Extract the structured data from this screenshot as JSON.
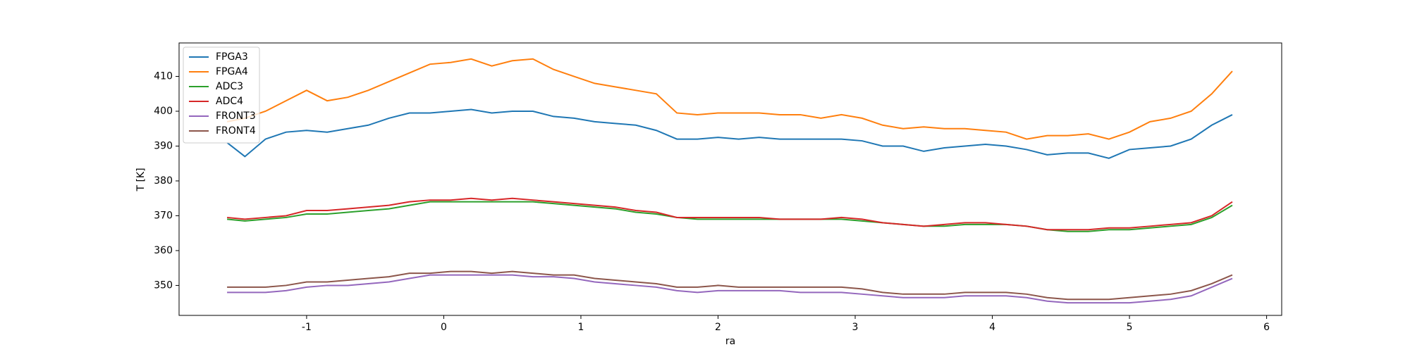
{
  "chart_data": {
    "type": "line",
    "x_label": "ra",
    "y_label": "T [K]",
    "xlim": [
      -1.93,
      6.11
    ],
    "ylim": [
      341.4,
      419.6
    ],
    "xticks": [
      -1,
      0,
      1,
      2,
      3,
      4,
      5,
      6
    ],
    "yticks": [
      350,
      360,
      370,
      380,
      390,
      400,
      410
    ],
    "grid": false,
    "legend": "upper left",
    "x": [
      -1.58,
      -1.45,
      -1.3,
      -1.15,
      -1.0,
      -0.85,
      -0.7,
      -0.55,
      -0.4,
      -0.25,
      -0.1,
      0.05,
      0.2,
      0.35,
      0.5,
      0.65,
      0.8,
      0.95,
      1.1,
      1.25,
      1.4,
      1.55,
      1.7,
      1.85,
      2.0,
      2.15,
      2.3,
      2.45,
      2.6,
      2.75,
      2.9,
      3.05,
      3.2,
      3.35,
      3.5,
      3.65,
      3.8,
      3.95,
      4.1,
      4.25,
      4.4,
      4.55,
      4.7,
      4.85,
      5.0,
      5.15,
      5.3,
      5.45,
      5.6,
      5.75
    ],
    "series": [
      {
        "name": "FPGA3",
        "color": "#1f77b4",
        "values": [
          391,
          387,
          392,
          394,
          394.5,
          394,
          395,
          396,
          398,
          399.5,
          399.5,
          400,
          400.5,
          399.5,
          400,
          400,
          398.5,
          398,
          397,
          396.5,
          396,
          394.5,
          392,
          392,
          392.5,
          392,
          392.5,
          392,
          392,
          392,
          392,
          391.5,
          390,
          390,
          388.5,
          389.5,
          390,
          390.5,
          390,
          389,
          387.5,
          388,
          388,
          386.5,
          389,
          389.5,
          390,
          392,
          396,
          399
        ]
      },
      {
        "name": "FPGA4",
        "color": "#ff7f0e",
        "values": [
          397,
          398,
          400,
          403,
          406,
          403,
          404,
          406,
          408.5,
          411,
          413.5,
          414,
          415,
          413,
          414.5,
          415,
          412,
          410,
          408,
          407,
          406,
          405,
          399.5,
          399,
          399.5,
          399.5,
          399.5,
          399,
          399,
          398,
          399,
          398,
          396,
          395,
          395.5,
          395,
          395,
          394.5,
          394,
          392,
          393,
          393,
          393.5,
          392,
          394,
          397,
          398,
          400,
          405,
          411.5
        ]
      },
      {
        "name": "ADC3",
        "color": "#2ca02c",
        "values": [
          369,
          368.5,
          369,
          369.5,
          370.5,
          370.5,
          371,
          371.5,
          372,
          373,
          374,
          374,
          374,
          374,
          374,
          374,
          373.5,
          373,
          372.5,
          372,
          371,
          370.5,
          369.5,
          369,
          369,
          369,
          369,
          369,
          369,
          369,
          369,
          368.5,
          368,
          367.5,
          367,
          367,
          367.5,
          367.5,
          367.5,
          367,
          366,
          365.5,
          365.5,
          366,
          366,
          366.5,
          367,
          367.5,
          369.5,
          373
        ]
      },
      {
        "name": "ADC4",
        "color": "#d62728",
        "values": [
          369.5,
          369,
          369.5,
          370,
          371.5,
          371.5,
          372,
          372.5,
          373,
          374,
          374.5,
          374.5,
          375,
          374.5,
          375,
          374.5,
          374,
          373.5,
          373,
          372.5,
          371.5,
          371,
          369.5,
          369.5,
          369.5,
          369.5,
          369.5,
          369,
          369,
          369,
          369.5,
          369,
          368,
          367.5,
          367,
          367.5,
          368,
          368,
          367.5,
          367,
          366,
          366,
          366,
          366.5,
          366.5,
          367,
          367.5,
          368,
          370,
          374
        ]
      },
      {
        "name": "FRONT3",
        "color": "#9467bd",
        "values": [
          348,
          348,
          348,
          348.5,
          349.5,
          350,
          350,
          350.5,
          351,
          352,
          353,
          353,
          353,
          353,
          353,
          352.5,
          352.5,
          352,
          351,
          350.5,
          350,
          349.5,
          348.5,
          348,
          348.5,
          348.5,
          348.5,
          348.5,
          348,
          348,
          348,
          347.5,
          347,
          346.5,
          346.5,
          346.5,
          347,
          347,
          347,
          346.5,
          345.5,
          345,
          345,
          345,
          345,
          345.5,
          346,
          347,
          349.5,
          352
        ]
      },
      {
        "name": "FRONT4",
        "color": "#8c564b",
        "values": [
          349.5,
          349.5,
          349.5,
          350,
          351,
          351,
          351.5,
          352,
          352.5,
          353.5,
          353.5,
          354,
          354,
          353.5,
          354,
          353.5,
          353,
          353,
          352,
          351.5,
          351,
          350.5,
          349.5,
          349.5,
          350,
          349.5,
          349.5,
          349.5,
          349.5,
          349.5,
          349.5,
          349,
          348,
          347.5,
          347.5,
          347.5,
          348,
          348,
          348,
          347.5,
          346.5,
          346,
          346,
          346,
          346.5,
          347,
          347.5,
          348.5,
          350.5,
          353
        ]
      }
    ]
  }
}
